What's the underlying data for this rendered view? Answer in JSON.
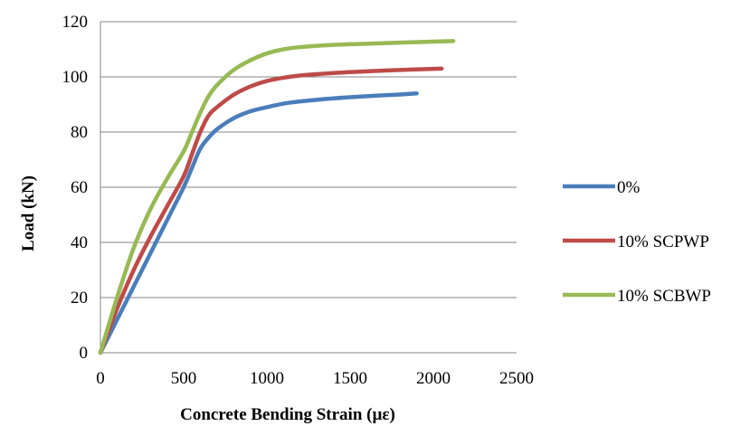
{
  "chart_data": {
    "type": "line",
    "title": "",
    "xlabel": "Concrete Bending Strain (µε)",
    "ylabel": "Load (kN)",
    "xlim": [
      0,
      2500
    ],
    "ylim": [
      0,
      120
    ],
    "xticks": [
      "0",
      "500",
      "1000",
      "1500",
      "2000",
      "2500"
    ],
    "yticks": [
      "0",
      "20",
      "40",
      "60",
      "80",
      "100",
      "120"
    ],
    "grid": "horizontal",
    "legend_position": "right",
    "series": [
      {
        "name": "0%",
        "color": "#4a7ebb",
        "points": [
          [
            0,
            0
          ],
          [
            100,
            12
          ],
          [
            200,
            24
          ],
          [
            300,
            36
          ],
          [
            400,
            48
          ],
          [
            500,
            60
          ],
          [
            550,
            67
          ],
          [
            600,
            74
          ],
          [
            650,
            78
          ],
          [
            700,
            81
          ],
          [
            800,
            85
          ],
          [
            900,
            87.5
          ],
          [
            1000,
            89
          ],
          [
            1100,
            90.3
          ],
          [
            1200,
            91.1
          ],
          [
            1400,
            92.2
          ],
          [
            1600,
            93
          ],
          [
            1800,
            93.6
          ],
          [
            1900,
            94
          ]
        ]
      },
      {
        "name": "10% SCPWP",
        "color": "#be4b48",
        "points": [
          [
            0,
            0
          ],
          [
            100,
            16
          ],
          [
            200,
            30
          ],
          [
            300,
            42
          ],
          [
            400,
            53
          ],
          [
            500,
            64
          ],
          [
            550,
            72
          ],
          [
            600,
            80
          ],
          [
            650,
            86
          ],
          [
            700,
            89
          ],
          [
            800,
            93.5
          ],
          [
            900,
            96.5
          ],
          [
            1000,
            98.5
          ],
          [
            1100,
            99.7
          ],
          [
            1200,
            100.5
          ],
          [
            1400,
            101.4
          ],
          [
            1600,
            102
          ],
          [
            1800,
            102.5
          ],
          [
            2000,
            102.9
          ],
          [
            2050,
            103
          ]
        ]
      },
      {
        "name": "10% SCBWP",
        "color": "#98b954",
        "points": [
          [
            0,
            0
          ],
          [
            100,
            20
          ],
          [
            200,
            38
          ],
          [
            300,
            52
          ],
          [
            400,
            63
          ],
          [
            500,
            73
          ],
          [
            550,
            80
          ],
          [
            600,
            87
          ],
          [
            650,
            93
          ],
          [
            700,
            97
          ],
          [
            800,
            102.5
          ],
          [
            900,
            106
          ],
          [
            1000,
            108.5
          ],
          [
            1100,
            110
          ],
          [
            1200,
            110.8
          ],
          [
            1400,
            111.6
          ],
          [
            1600,
            112
          ],
          [
            1800,
            112.4
          ],
          [
            2000,
            112.8
          ],
          [
            2120,
            113
          ]
        ]
      }
    ]
  }
}
